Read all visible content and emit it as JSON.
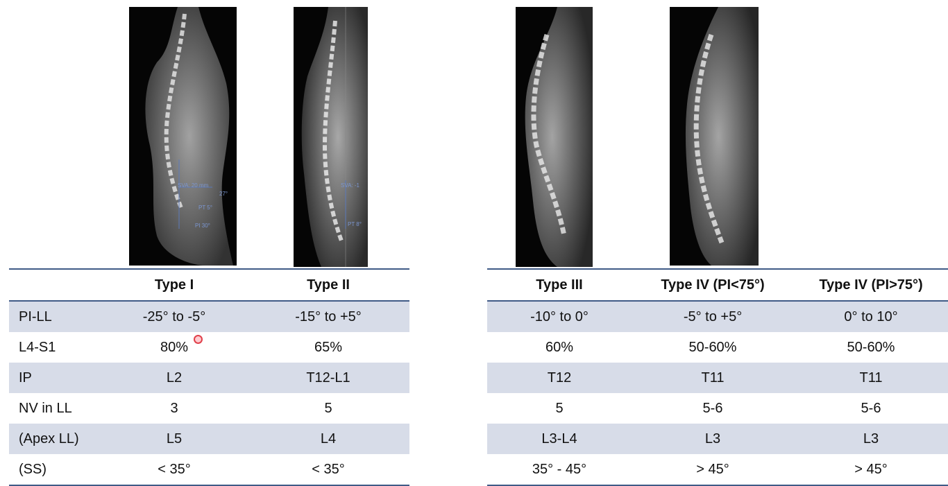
{
  "images": [
    {
      "name": "xray-type-1",
      "overlay": [
        "SVA: 20 mm",
        "PT 5°",
        "PI 30°",
        "27°"
      ]
    },
    {
      "name": "xray-type-2",
      "overlay": [
        "SVA: -1",
        "PT 8°"
      ]
    },
    {
      "name": "xray-type-3",
      "overlay": []
    },
    {
      "name": "xray-type-4",
      "overlay": []
    }
  ],
  "table_left": {
    "headers": [
      "",
      "Type I",
      "Type II"
    ],
    "rows": [
      [
        "PI-LL",
        "-25° to -5°",
        "-15° to +5°"
      ],
      [
        "L4-S1",
        "80%",
        "65%"
      ],
      [
        "IP",
        "L2",
        "T12-L1"
      ],
      [
        "NV in LL",
        "3",
        "5"
      ],
      [
        "(Apex LL)",
        "L5",
        "L4"
      ],
      [
        "(SS)",
        "< 35°",
        "< 35°"
      ]
    ]
  },
  "table_right": {
    "headers": [
      "Type III",
      "Type IV (PI<75°)",
      "Type IV (PI>75°)"
    ],
    "rows": [
      [
        "-10° to 0°",
        "-5° to +5°",
        "0° to 10°"
      ],
      [
        "60%",
        "50-60%",
        "50-60%"
      ],
      [
        "T12",
        "T11",
        "T11"
      ],
      [
        "5",
        "5-6",
        "5-6"
      ],
      [
        "L3-L4",
        "L3",
        "L3"
      ],
      [
        "35° - 45°",
        "> 45°",
        "> 45°"
      ]
    ]
  },
  "colors": {
    "header_rule": "#3f5a86",
    "shade_row": "#d7dce8",
    "xray_bg": "#050505"
  }
}
